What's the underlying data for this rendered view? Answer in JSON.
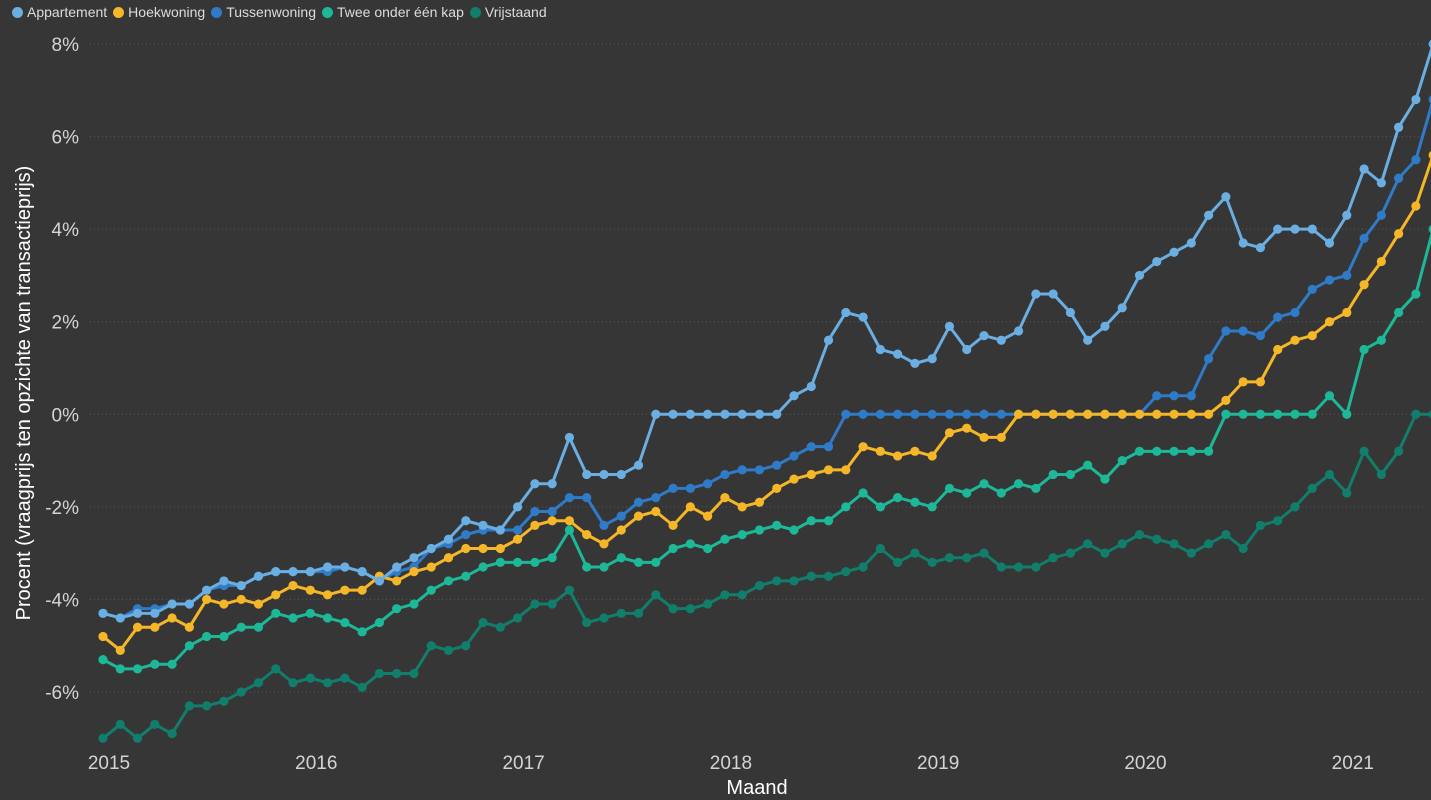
{
  "chart_data": {
    "type": "line",
    "xlabel": "Maand",
    "ylabel": "Procent (vraagprijs ten opzichte van transactieprijs)",
    "ylim": [
      -7,
      8
    ],
    "yticks": [
      8,
      6,
      4,
      2,
      0,
      -2,
      -4,
      -6
    ],
    "ytick_labels": [
      "8%",
      "6%",
      "4%",
      "2%",
      "0%",
      "-2%",
      "-4%",
      "-6%"
    ],
    "xticks": [
      2015,
      2016,
      2017,
      2018,
      2019,
      2020,
      2021
    ],
    "xtick_labels": [
      "2015",
      "2016",
      "2017",
      "2018",
      "2019",
      "2020",
      "2021"
    ],
    "x_start": "2015-01",
    "grid": true,
    "legend_position": "top-left",
    "series": [
      {
        "name": "Appartement",
        "color": "#6aaee2",
        "values": [
          -4.3,
          -4.4,
          -4.3,
          -4.3,
          -4.1,
          -4.1,
          -3.8,
          -3.6,
          -3.7,
          -3.5,
          -3.4,
          -3.4,
          -3.4,
          -3.3,
          -3.3,
          -3.4,
          -3.6,
          -3.3,
          -3.1,
          -2.9,
          -2.7,
          -2.3,
          -2.4,
          -2.5,
          -2.0,
          -1.5,
          -1.5,
          -0.5,
          -1.3,
          -1.3,
          -1.3,
          -1.1,
          0,
          0,
          0,
          0,
          0,
          0,
          0,
          0,
          0.4,
          0.6,
          1.6,
          2.2,
          2.1,
          1.4,
          1.3,
          1.1,
          1.2,
          1.9,
          1.4,
          1.7,
          1.6,
          1.8,
          2.6,
          2.6,
          2.2,
          1.6,
          1.9,
          2.3,
          3.0,
          3.3,
          3.5,
          3.7,
          4.3,
          4.7,
          3.7,
          3.6,
          4.0,
          4.0,
          4.0,
          3.7,
          4.3,
          5.3,
          5.0,
          6.2,
          6.8,
          8.0
        ]
      },
      {
        "name": "Hoekwoning",
        "color": "#f5b728",
        "values": [
          -4.8,
          -5.1,
          -4.6,
          -4.6,
          -4.4,
          -4.6,
          -4.0,
          -4.1,
          -4.0,
          -4.1,
          -3.9,
          -3.7,
          -3.8,
          -3.9,
          -3.8,
          -3.8,
          -3.5,
          -3.6,
          -3.4,
          -3.3,
          -3.1,
          -2.9,
          -2.9,
          -2.9,
          -2.7,
          -2.4,
          -2.3,
          -2.3,
          -2.6,
          -2.8,
          -2.5,
          -2.2,
          -2.1,
          -2.4,
          -2.0,
          -2.2,
          -1.8,
          -2.0,
          -1.9,
          -1.6,
          -1.4,
          -1.3,
          -1.2,
          -1.2,
          -0.7,
          -0.8,
          -0.9,
          -0.8,
          -0.9,
          -0.4,
          -0.3,
          -0.5,
          -0.5,
          0,
          0,
          0,
          0,
          0,
          0,
          0,
          0,
          0,
          0,
          0,
          0,
          0.3,
          0.7,
          0.7,
          1.4,
          1.6,
          1.7,
          2.0,
          2.2,
          2.8,
          3.3,
          3.9,
          4.5,
          5.6
        ]
      },
      {
        "name": "Tussenwoning",
        "color": "#2f7bc8",
        "values": [
          -4.3,
          -4.4,
          -4.2,
          -4.2,
          -4.1,
          -4.1,
          -3.8,
          -3.7,
          -3.7,
          -3.5,
          -3.4,
          -3.4,
          -3.4,
          -3.4,
          -3.3,
          -3.4,
          -3.6,
          -3.4,
          -3.3,
          -2.9,
          -2.8,
          -2.6,
          -2.5,
          -2.5,
          -2.5,
          -2.1,
          -2.1,
          -1.8,
          -1.8,
          -2.4,
          -2.2,
          -1.9,
          -1.8,
          -1.6,
          -1.6,
          -1.5,
          -1.3,
          -1.2,
          -1.2,
          -1.1,
          -0.9,
          -0.7,
          -0.7,
          0,
          0,
          0,
          0,
          0,
          0,
          0,
          0,
          0,
          0,
          0,
          0,
          0,
          0,
          0,
          0,
          0,
          0,
          0.4,
          0.4,
          0.4,
          1.2,
          1.8,
          1.8,
          1.7,
          2.1,
          2.2,
          2.7,
          2.9,
          3.0,
          3.8,
          4.3,
          5.1,
          5.5,
          6.8
        ]
      },
      {
        "name": "Twee onder één kap",
        "color": "#1db897",
        "values": [
          -5.3,
          -5.5,
          -5.5,
          -5.4,
          -5.4,
          -5.0,
          -4.8,
          -4.8,
          -4.6,
          -4.6,
          -4.3,
          -4.4,
          -4.3,
          -4.4,
          -4.5,
          -4.7,
          -4.5,
          -4.2,
          -4.1,
          -3.8,
          -3.6,
          -3.5,
          -3.3,
          -3.2,
          -3.2,
          -3.2,
          -3.1,
          -2.5,
          -3.3,
          -3.3,
          -3.1,
          -3.2,
          -3.2,
          -2.9,
          -2.8,
          -2.9,
          -2.7,
          -2.6,
          -2.5,
          -2.4,
          -2.5,
          -2.3,
          -2.3,
          -2.0,
          -1.7,
          -2.0,
          -1.8,
          -1.9,
          -2.0,
          -1.6,
          -1.7,
          -1.5,
          -1.7,
          -1.5,
          -1.6,
          -1.3,
          -1.3,
          -1.1,
          -1.4,
          -1.0,
          -0.8,
          -0.8,
          -0.8,
          -0.8,
          -0.8,
          0,
          0,
          0,
          0,
          0,
          0,
          0.4,
          0,
          1.4,
          1.6,
          2.2,
          2.6,
          4.0
        ]
      },
      {
        "name": "Vrijstaand",
        "color": "#117e6b",
        "values": [
          -7.0,
          -6.7,
          -7.0,
          -6.7,
          -6.9,
          -6.3,
          -6.3,
          -6.2,
          -6.0,
          -5.8,
          -5.5,
          -5.8,
          -5.7,
          -5.8,
          -5.7,
          -5.9,
          -5.6,
          -5.6,
          -5.6,
          -5.0,
          -5.1,
          -5.0,
          -4.5,
          -4.6,
          -4.4,
          -4.1,
          -4.1,
          -3.8,
          -4.5,
          -4.4,
          -4.3,
          -4.3,
          -3.9,
          -4.2,
          -4.2,
          -4.1,
          -3.9,
          -3.9,
          -3.7,
          -3.6,
          -3.6,
          -3.5,
          -3.5,
          -3.4,
          -3.3,
          -2.9,
          -3.2,
          -3.0,
          -3.2,
          -3.1,
          -3.1,
          -3.0,
          -3.3,
          -3.3,
          -3.3,
          -3.1,
          -3.0,
          -2.8,
          -3.0,
          -2.8,
          -2.6,
          -2.7,
          -2.8,
          -3.0,
          -2.8,
          -2.6,
          -2.9,
          -2.4,
          -2.3,
          -2.0,
          -1.6,
          -1.3,
          -1.7,
          -0.8,
          -1.3,
          -0.8,
          0,
          0
        ]
      }
    ]
  }
}
